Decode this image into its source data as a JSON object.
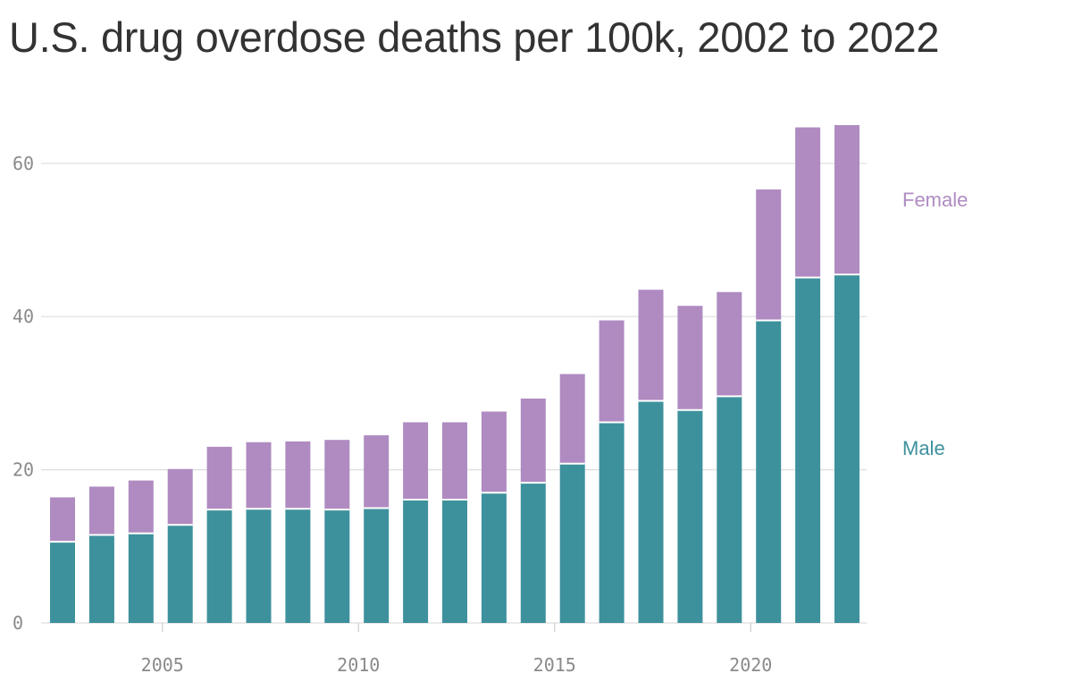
{
  "title": "U.S. drug overdose deaths per 100k, 2002 to 2022",
  "colors": {
    "male": "#3d919c",
    "female": "#af8bc1",
    "grid": "#dedede",
    "tick": "#8a8a8a"
  },
  "chart_data": {
    "type": "bar",
    "stacked": true,
    "title": "U.S. drug overdose deaths per 100k, 2002 to 2022",
    "xlabel": "",
    "ylabel": "",
    "x": [
      2002,
      2003,
      2004,
      2005,
      2006,
      2007,
      2008,
      2009,
      2010,
      2011,
      2012,
      2013,
      2014,
      2015,
      2016,
      2017,
      2018,
      2019,
      2020,
      2021,
      2022
    ],
    "series": [
      {
        "name": "Male",
        "color": "#3d919c",
        "values": [
          10.6,
          11.5,
          11.7,
          12.8,
          14.8,
          14.9,
          14.9,
          14.8,
          15.0,
          16.1,
          16.1,
          17.0,
          18.3,
          20.8,
          26.2,
          29.0,
          27.8,
          29.6,
          39.5,
          45.1,
          45.5
        ]
      },
      {
        "name": "Female",
        "color": "#af8bc1",
        "values": [
          5.8,
          6.3,
          6.9,
          7.3,
          8.2,
          8.7,
          8.8,
          9.1,
          9.5,
          10.1,
          10.1,
          10.6,
          11.0,
          11.7,
          13.3,
          14.5,
          13.6,
          13.6,
          17.1,
          19.6,
          19.5
        ]
      }
    ],
    "ylim": [
      0,
      65
    ],
    "yticks": [
      0,
      20,
      40,
      60
    ],
    "xticks": [
      2005,
      2010,
      2015,
      2020
    ],
    "grid": true,
    "legend": "right"
  }
}
